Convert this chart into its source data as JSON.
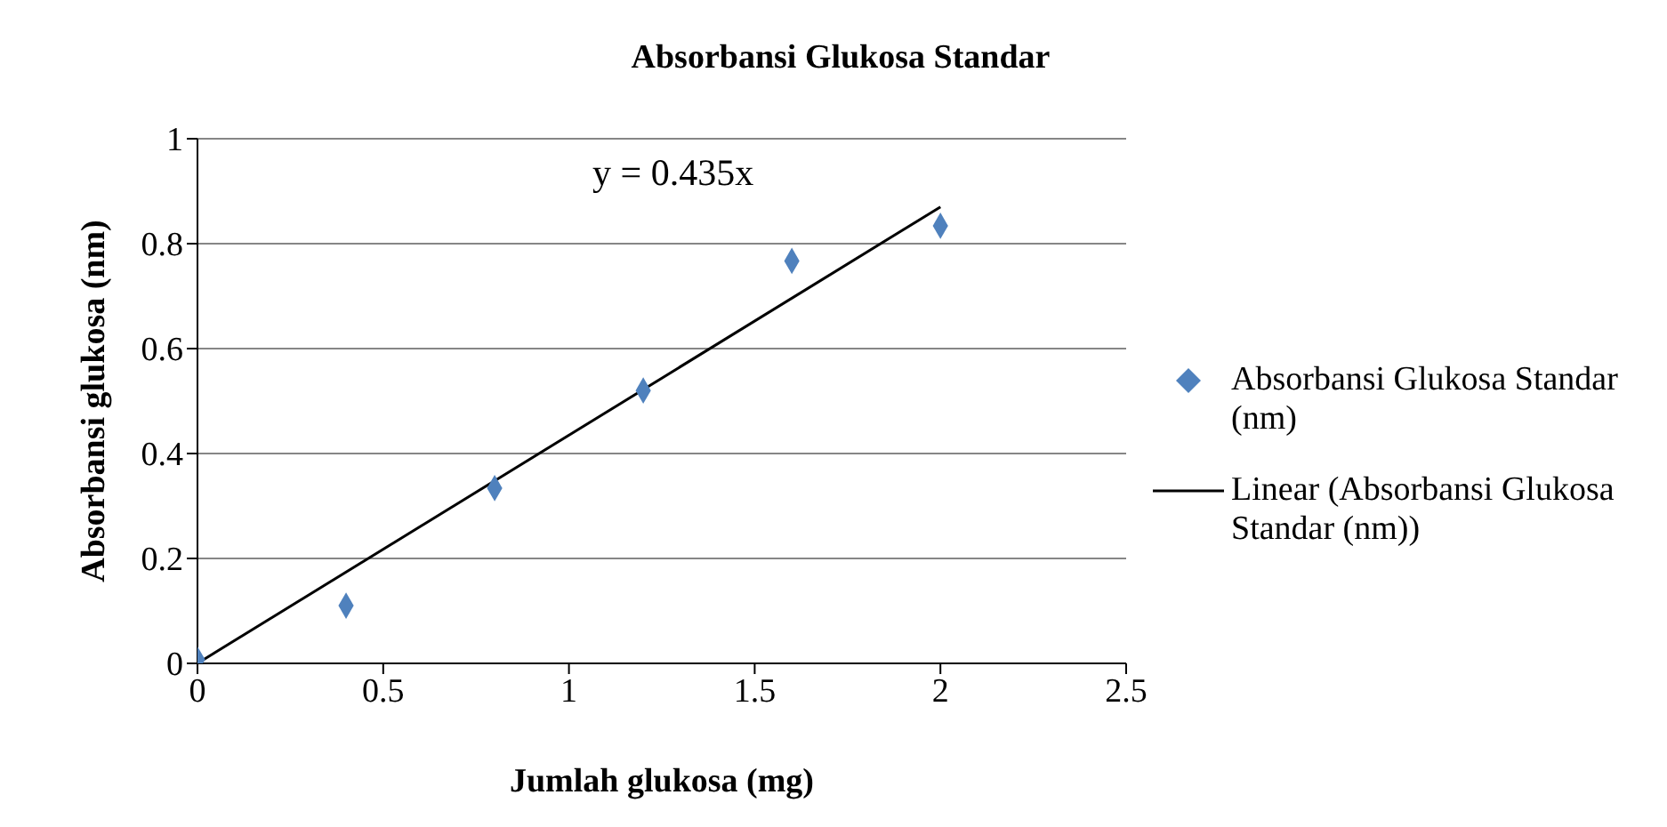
{
  "chart_data": {
    "type": "scatter",
    "title": "Absorbansi Glukosa Standar",
    "xlabel": "Jumlah glukosa (mg)",
    "ylabel": "Absorbansi glukosa  (nm)",
    "xlim": [
      0,
      2.5
    ],
    "xticks": [
      0,
      0.5,
      1,
      1.5,
      2,
      2.5
    ],
    "ylim": [
      0,
      1
    ],
    "yticks": [
      0,
      0.2,
      0.4,
      0.6,
      0.8,
      1
    ],
    "grid": "y",
    "legend": "right",
    "marker": "diamond",
    "annotations": [
      "y = 0.435x"
    ],
    "series": [
      {
        "name": "Absorbansi Glukosa Standar (nm)",
        "color": "#4f81bd",
        "x": [
          0,
          0.4,
          0.8,
          1.2,
          1.6,
          2
        ],
        "values": [
          0.007,
          0.11,
          0.334,
          0.52,
          0.767,
          0.834
        ]
      },
      {
        "name": "Linear (Absorbansi Glukosa Standar (nm))",
        "type": "line",
        "color": "#000000",
        "marker": "none",
        "line_style": "solid",
        "x": [
          0,
          2
        ],
        "values": [
          0,
          0.87
        ]
      }
    ]
  }
}
